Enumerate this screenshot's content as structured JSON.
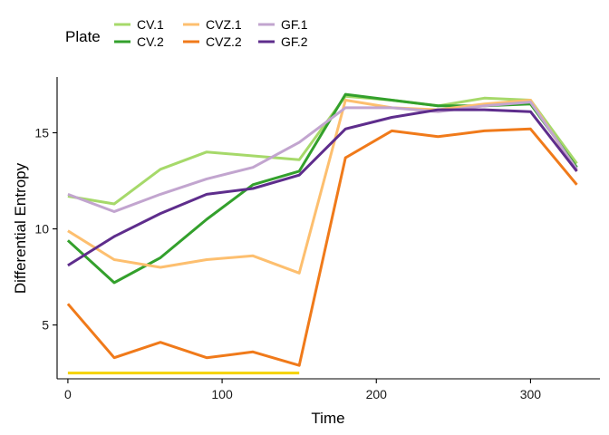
{
  "chart_data": {
    "type": "line",
    "title": "",
    "xlabel": "Time",
    "ylabel": "Differential Entropy",
    "xlim": [
      -7,
      345
    ],
    "ylim": [
      2.2,
      17.9
    ],
    "x_ticks": [
      0,
      100,
      200,
      300
    ],
    "y_ticks": [
      5,
      10,
      15
    ],
    "grid": false,
    "legend": {
      "title": "Plate",
      "position": "top-left",
      "entries": [
        "CV.1",
        "CV.2",
        "CVZ.1",
        "CVZ.2",
        "GF.1",
        "GF.2"
      ]
    },
    "x": [
      0,
      30,
      60,
      90,
      120,
      150,
      180,
      210,
      240,
      270,
      300,
      330
    ],
    "series": [
      {
        "name": "CV.1",
        "color": "#a6d96a",
        "values": [
          11.7,
          11.3,
          13.1,
          14.0,
          13.8,
          13.6,
          16.9,
          16.7,
          16.4,
          16.8,
          16.7,
          13.4
        ]
      },
      {
        "name": "CV.2",
        "color": "#33a02c",
        "values": [
          9.4,
          7.2,
          8.5,
          10.5,
          12.3,
          13.0,
          17.0,
          16.7,
          16.4,
          16.4,
          16.5,
          13.2
        ]
      },
      {
        "name": "CVZ.1",
        "color": "#fdbf6f",
        "values": [
          9.9,
          8.4,
          8.0,
          8.4,
          8.6,
          7.7,
          16.7,
          16.3,
          16.2,
          16.5,
          16.7,
          13.0
        ]
      },
      {
        "name": "CVZ.2",
        "color": "#f07a1a",
        "values": [
          6.1,
          3.3,
          4.1,
          3.3,
          3.6,
          2.9,
          13.7,
          15.1,
          14.8,
          15.1,
          15.2,
          12.3
        ]
      },
      {
        "name": "GF.1",
        "color": "#c2a5cf",
        "values": [
          11.8,
          10.9,
          11.8,
          12.6,
          13.2,
          14.5,
          16.3,
          16.3,
          16.1,
          16.4,
          16.6,
          13.1
        ]
      },
      {
        "name": "GF.2",
        "color": "#5e2d8c",
        "values": [
          8.1,
          9.6,
          10.8,
          11.8,
          12.1,
          12.8,
          15.2,
          15.8,
          16.2,
          16.2,
          16.1,
          13.0
        ]
      }
    ],
    "extra_series": [
      {
        "color": "#f5d200",
        "x": [
          0,
          150
        ],
        "values": [
          2.5,
          2.5
        ]
      }
    ]
  }
}
